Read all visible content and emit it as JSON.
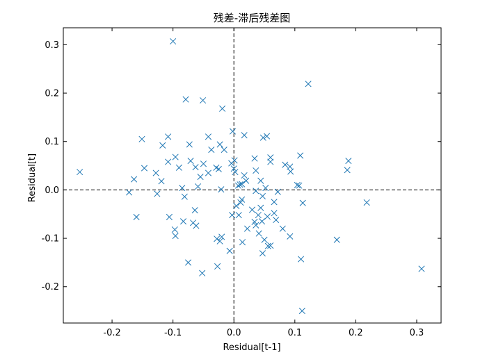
{
  "chart_data": {
    "type": "scatter",
    "title": "残差-滞后残差图",
    "xlabel": "Residual[t-1]",
    "ylabel": "Residual[t]",
    "xlim": [
      -0.28,
      0.34
    ],
    "ylim": [
      -0.275,
      0.335
    ],
    "xticks": [
      -0.2,
      -0.1,
      0.0,
      0.1,
      0.2,
      0.3
    ],
    "xtick_labels": [
      "-0.2",
      "-0.1",
      "0.0",
      "0.1",
      "0.2",
      "0.3"
    ],
    "yticks": [
      -0.2,
      -0.1,
      0.0,
      0.1,
      0.2,
      0.3
    ],
    "ytick_labels": [
      "-0.2",
      "-0.1",
      "0.0",
      "0.1",
      "0.2",
      "0.3"
    ],
    "marker": "x",
    "color": "#1f77b4",
    "reference_lines": {
      "x": 0.0,
      "y": 0.0,
      "style": "dashed",
      "color": "#333333"
    },
    "grid": false,
    "legend": "none",
    "series": [
      {
        "points": [
          [
            -0.1,
            0.307
          ],
          [
            0.122,
            0.219
          ],
          [
            -0.079,
            0.187
          ],
          [
            -0.051,
            0.185
          ],
          [
            -0.019,
            0.168
          ],
          [
            -0.002,
            0.121
          ],
          [
            0.017,
            0.113
          ],
          [
            0.054,
            0.111
          ],
          [
            0.048,
            0.108
          ],
          [
            -0.151,
            0.105
          ],
          [
            -0.108,
            0.11
          ],
          [
            -0.042,
            0.11
          ],
          [
            -0.073,
            0.094
          ],
          [
            -0.023,
            0.094
          ],
          [
            -0.117,
            0.092
          ],
          [
            -0.037,
            0.083
          ],
          [
            -0.016,
            0.083
          ],
          [
            0.109,
            0.071
          ],
          [
            0.06,
            0.067
          ],
          [
            0.034,
            0.065
          ],
          [
            -0.096,
            0.068
          ],
          [
            -0.108,
            0.058
          ],
          [
            -0.071,
            0.06
          ],
          [
            0.001,
            0.061
          ],
          [
            0.188,
            0.06
          ],
          [
            -0.004,
            0.055
          ],
          [
            0.06,
            0.058
          ],
          [
            0.084,
            0.052
          ],
          [
            0.092,
            0.048
          ],
          [
            -0.05,
            0.054
          ],
          [
            -0.09,
            0.046
          ],
          [
            -0.147,
            0.045
          ],
          [
            -0.063,
            0.047
          ],
          [
            -0.029,
            0.046
          ],
          [
            -0.025,
            0.043
          ],
          [
            0.0,
            0.044
          ],
          [
            0.036,
            0.04
          ],
          [
            0.093,
            0.038
          ],
          [
            0.186,
            0.041
          ],
          [
            -0.128,
            0.035
          ],
          [
            -0.042,
            0.035
          ],
          [
            -0.055,
            0.027
          ],
          [
            0.002,
            0.037
          ],
          [
            0.017,
            0.03
          ],
          [
            -0.253,
            0.037
          ],
          [
            0.02,
            0.019
          ],
          [
            -0.164,
            0.022
          ],
          [
            -0.119,
            0.018
          ],
          [
            0.044,
            0.019
          ],
          [
            -0.059,
            0.007
          ],
          [
            -0.085,
            0.004
          ],
          [
            -0.021,
            0.001
          ],
          [
            0.01,
            0.011
          ],
          [
            0.007,
            0.009
          ],
          [
            0.013,
            0.012
          ],
          [
            0.104,
            0.01
          ],
          [
            0.107,
            0.009
          ],
          [
            0.052,
            0.004
          ],
          [
            -0.172,
            -0.005
          ],
          [
            -0.126,
            -0.008
          ],
          [
            0.036,
            -0.002
          ],
          [
            0.072,
            -0.004
          ],
          [
            0.047,
            -0.013
          ],
          [
            -0.081,
            -0.014
          ],
          [
            0.013,
            -0.02
          ],
          [
            0.011,
            -0.026
          ],
          [
            0.004,
            -0.033
          ],
          [
            0.066,
            -0.025
          ],
          [
            0.113,
            -0.027
          ],
          [
            0.218,
            -0.026
          ],
          [
            -0.064,
            -0.042
          ],
          [
            0.03,
            -0.041
          ],
          [
            0.044,
            -0.037
          ],
          [
            0.066,
            -0.048
          ],
          [
            0.04,
            -0.052
          ],
          [
            -0.003,
            -0.052
          ],
          [
            0.008,
            -0.052
          ],
          [
            0.055,
            -0.055
          ],
          [
            -0.16,
            -0.056
          ],
          [
            -0.106,
            -0.056
          ],
          [
            -0.083,
            -0.065
          ],
          [
            -0.067,
            -0.068
          ],
          [
            0.034,
            -0.066
          ],
          [
            0.046,
            -0.065
          ],
          [
            0.069,
            -0.062
          ],
          [
            -0.062,
            -0.074
          ],
          [
            0.036,
            -0.073
          ],
          [
            -0.097,
            -0.082
          ],
          [
            0.022,
            -0.08
          ],
          [
            0.08,
            -0.08
          ],
          [
            0.041,
            -0.09
          ],
          [
            -0.096,
            -0.095
          ],
          [
            0.092,
            -0.096
          ],
          [
            -0.028,
            -0.101
          ],
          [
            -0.02,
            -0.097
          ],
          [
            0.014,
            -0.108
          ],
          [
            -0.023,
            -0.106
          ],
          [
            0.05,
            -0.103
          ],
          [
            0.169,
            -0.103
          ],
          [
            0.06,
            -0.115
          ],
          [
            0.056,
            -0.116
          ],
          [
            -0.007,
            -0.126
          ],
          [
            0.047,
            -0.131
          ],
          [
            0.11,
            -0.143
          ],
          [
            -0.075,
            -0.15
          ],
          [
            -0.027,
            -0.158
          ],
          [
            0.308,
            -0.163
          ],
          [
            -0.052,
            -0.172
          ],
          [
            0.112,
            -0.25
          ]
        ]
      }
    ]
  }
}
